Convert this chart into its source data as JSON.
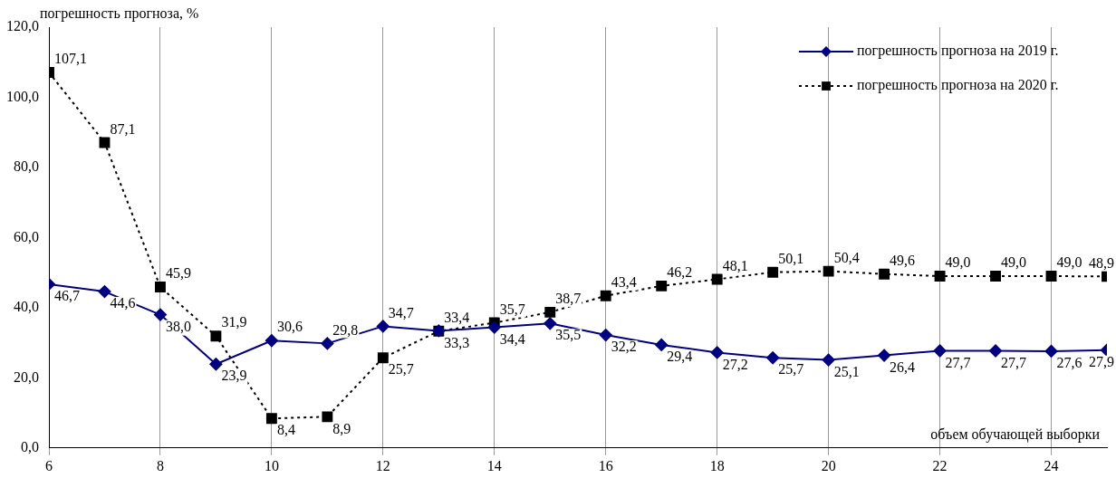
{
  "chart_data": {
    "type": "line",
    "ylabel": "погрешность прогноза, %",
    "xlabel": "объем обучающей выборки",
    "x": [
      6,
      7,
      8,
      9,
      10,
      11,
      12,
      13,
      14,
      15,
      16,
      17,
      18,
      19,
      20,
      21,
      22,
      23,
      24,
      25
    ],
    "xlim": [
      6,
      25
    ],
    "xticks": [
      6,
      8,
      10,
      12,
      14,
      16,
      18,
      20,
      22,
      24
    ],
    "ylim": [
      0,
      120
    ],
    "yticks": [
      {
        "value": 0,
        "label": "0,0"
      },
      {
        "value": 20,
        "label": "20,0"
      },
      {
        "value": 40,
        "label": "40,0"
      },
      {
        "value": 60,
        "label": "60,0"
      },
      {
        "value": 80,
        "label": "80,0"
      },
      {
        "value": 100,
        "label": "100,0"
      },
      {
        "value": 120,
        "label": "120,0"
      }
    ],
    "grid": "x",
    "legend": "top right",
    "series": [
      {
        "name": "погрешность прогноза на 2019 г.",
        "color": "#000080",
        "marker": "diamond",
        "line_style": "solid",
        "values": [
          46.7,
          44.6,
          38.0,
          23.9,
          30.6,
          29.8,
          34.7,
          33.4,
          34.4,
          35.5,
          32.2,
          29.4,
          27.2,
          25.7,
          25.1,
          26.4,
          27.7,
          27.7,
          27.6,
          27.9
        ],
        "value_labels": [
          "46,7",
          "44,6",
          "38,0",
          "23,9",
          "30,6",
          "29,8",
          "34,7",
          "33,4",
          "34,4",
          "35,5",
          "32,2",
          "29,4",
          "27,2",
          "25,7",
          "25,1",
          "26,4",
          "27,7",
          "27,7",
          "27,6",
          "27,9"
        ]
      },
      {
        "name": "погрешность прогноза на 2020 г.",
        "color": "#000000",
        "marker": "square",
        "line_style": "dotted",
        "values": [
          107.1,
          87.1,
          45.9,
          31.9,
          8.4,
          8.9,
          25.7,
          33.3,
          35.7,
          38.7,
          43.4,
          46.2,
          48.1,
          50.1,
          50.4,
          49.6,
          49.0,
          49.0,
          49.0,
          48.9
        ],
        "value_labels": [
          "107,1",
          "87,1",
          "45,9",
          "31,9",
          "8,4",
          "8,9",
          "25,7",
          "33,3",
          "35,7",
          "38,7",
          "43,4",
          "46,2",
          "48,1",
          "50,1",
          "50,4",
          "49,6",
          "49,0",
          "49,0",
          "49,0",
          "48,9"
        ]
      }
    ]
  }
}
